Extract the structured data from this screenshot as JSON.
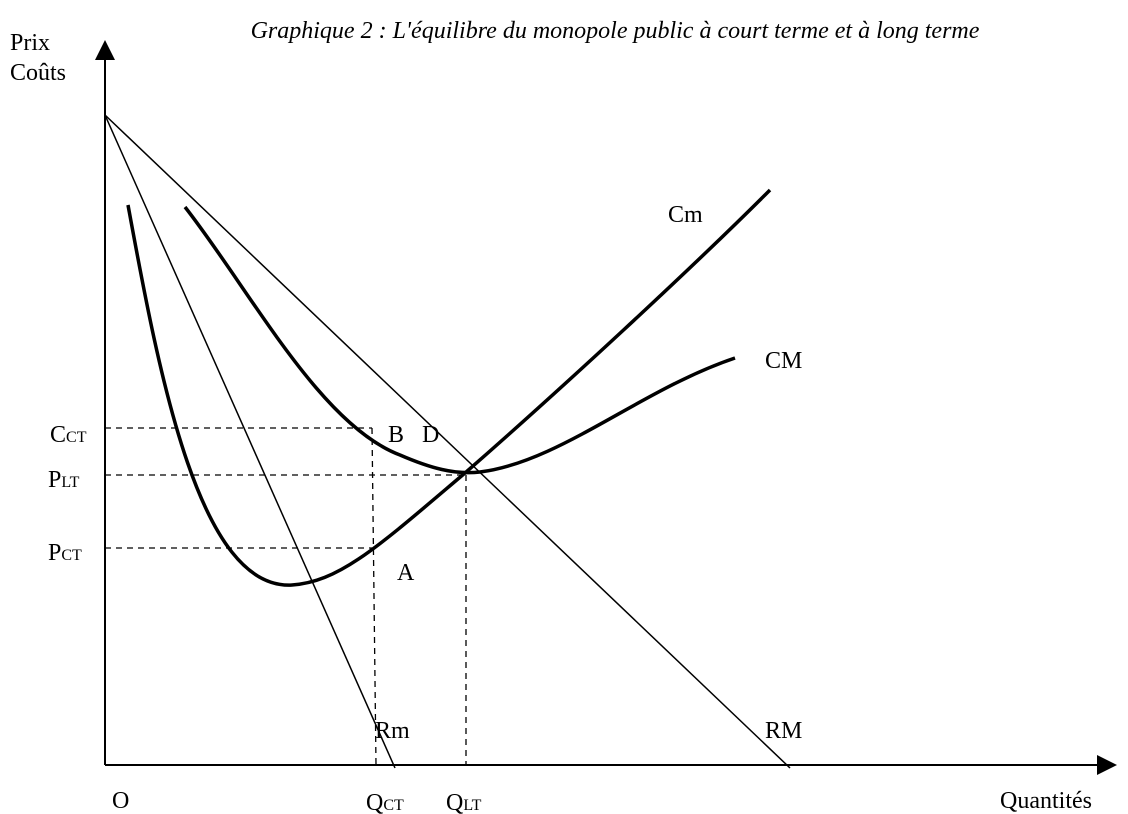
{
  "title": "Graphique 2 : L'équilibre du monopole public à court terme et à long terme",
  "axes": {
    "y_label": [
      "Prix",
      "Coûts"
    ],
    "x_label": "Quantités",
    "origin": "O"
  },
  "y_levels": [
    {
      "base": "C",
      "sub": "CT"
    },
    {
      "base": "P",
      "sub": "LT"
    },
    {
      "base": "P",
      "sub": "CT"
    }
  ],
  "x_levels": [
    {
      "base": "Q",
      "sub": "CT"
    },
    {
      "base": "Q",
      "sub": "LT"
    }
  ],
  "points": [
    "B",
    "D",
    "A"
  ],
  "curves": [
    "Cm",
    "CM",
    "Rm",
    "RM"
  ]
}
